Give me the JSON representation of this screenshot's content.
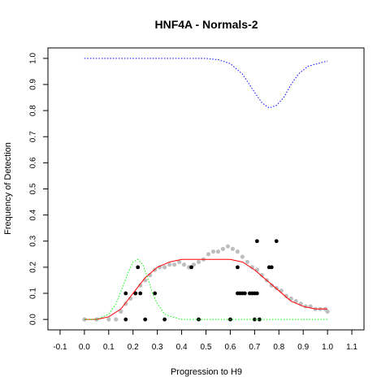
{
  "chart_data": {
    "type": "scatter",
    "title": "HNF4A - Normals-2",
    "xlabel": "Progression to H9",
    "ylabel": "Frequency of Detection",
    "xlim": [
      -0.15,
      1.15
    ],
    "ylim": [
      -0.04,
      1.04
    ],
    "x_ticks": [
      "-0.1",
      "0.0",
      "0.1",
      "0.2",
      "0.3",
      "0.4",
      "0.5",
      "0.6",
      "0.7",
      "0.8",
      "0.9",
      "1.0",
      "1.1"
    ],
    "y_ticks": [
      "0.0",
      "0.1",
      "0.2",
      "0.3",
      "0.4",
      "0.5",
      "0.6",
      "0.7",
      "0.8",
      "0.9",
      "1.0"
    ],
    "series": [
      {
        "kind": "points",
        "color": "#000000",
        "points": [
          [
            0.17,
            0.1
          ],
          [
            0.17,
            0.0
          ],
          [
            0.21,
            0.1
          ],
          [
            0.22,
            0.2
          ],
          [
            0.23,
            0.1
          ],
          [
            0.25,
            0.0
          ],
          [
            0.29,
            0.1
          ],
          [
            0.33,
            0.0
          ],
          [
            0.44,
            0.2
          ],
          [
            0.47,
            0.0
          ],
          [
            0.6,
            0.0
          ],
          [
            0.63,
            0.2
          ],
          [
            0.63,
            0.1
          ],
          [
            0.64,
            0.1
          ],
          [
            0.65,
            0.1
          ],
          [
            0.66,
            0.1
          ],
          [
            0.68,
            0.1
          ],
          [
            0.69,
            0.1
          ],
          [
            0.7,
            0.1
          ],
          [
            0.71,
            0.1
          ],
          [
            0.71,
            0.3
          ],
          [
            0.7,
            0.0
          ],
          [
            0.72,
            0.0
          ],
          [
            0.76,
            0.2
          ],
          [
            0.77,
            0.2
          ],
          [
            0.79,
            0.3
          ]
        ]
      },
      {
        "kind": "smoothed-points",
        "color": "#bebebe",
        "points": [
          [
            0.0,
            0.0
          ],
          [
            0.05,
            0.0
          ],
          [
            0.1,
            0.0
          ],
          [
            0.13,
            0.0
          ],
          [
            0.15,
            0.03
          ],
          [
            0.17,
            0.06
          ],
          [
            0.19,
            0.08
          ],
          [
            0.21,
            0.1
          ],
          [
            0.23,
            0.13
          ],
          [
            0.25,
            0.15
          ],
          [
            0.27,
            0.17
          ],
          [
            0.29,
            0.19
          ],
          [
            0.31,
            0.2
          ],
          [
            0.33,
            0.2
          ],
          [
            0.35,
            0.21
          ],
          [
            0.37,
            0.21
          ],
          [
            0.39,
            0.22
          ],
          [
            0.41,
            0.21
          ],
          [
            0.43,
            0.2
          ],
          [
            0.45,
            0.21
          ],
          [
            0.47,
            0.22
          ],
          [
            0.49,
            0.23
          ],
          [
            0.51,
            0.25
          ],
          [
            0.53,
            0.26
          ],
          [
            0.55,
            0.26
          ],
          [
            0.57,
            0.27
          ],
          [
            0.59,
            0.28
          ],
          [
            0.61,
            0.27
          ],
          [
            0.63,
            0.26
          ],
          [
            0.65,
            0.24
          ],
          [
            0.67,
            0.22
          ],
          [
            0.69,
            0.2
          ],
          [
            0.71,
            0.19
          ],
          [
            0.73,
            0.17
          ],
          [
            0.75,
            0.15
          ],
          [
            0.77,
            0.13
          ],
          [
            0.79,
            0.12
          ],
          [
            0.81,
            0.11
          ],
          [
            0.83,
            0.09
          ],
          [
            0.85,
            0.08
          ],
          [
            0.87,
            0.07
          ],
          [
            0.89,
            0.06
          ],
          [
            0.91,
            0.05
          ],
          [
            0.93,
            0.05
          ],
          [
            0.95,
            0.04
          ],
          [
            0.97,
            0.04
          ],
          [
            0.99,
            0.04
          ],
          [
            1.0,
            0.03
          ]
        ]
      },
      {
        "kind": "line",
        "style": "solid",
        "color": "#ff0000",
        "points": [
          [
            0.0,
            0.0
          ],
          [
            0.05,
            0.0
          ],
          [
            0.1,
            0.01
          ],
          [
            0.15,
            0.04
          ],
          [
            0.2,
            0.1
          ],
          [
            0.25,
            0.16
          ],
          [
            0.3,
            0.2
          ],
          [
            0.35,
            0.22
          ],
          [
            0.4,
            0.23
          ],
          [
            0.45,
            0.23
          ],
          [
            0.5,
            0.23
          ],
          [
            0.55,
            0.23
          ],
          [
            0.6,
            0.23
          ],
          [
            0.65,
            0.22
          ],
          [
            0.7,
            0.19
          ],
          [
            0.75,
            0.15
          ],
          [
            0.8,
            0.11
          ],
          [
            0.85,
            0.07
          ],
          [
            0.9,
            0.05
          ],
          [
            0.95,
            0.04
          ],
          [
            1.0,
            0.04
          ]
        ]
      },
      {
        "kind": "line",
        "style": "dotted",
        "color": "#00ff00",
        "points": [
          [
            0.0,
            0.0
          ],
          [
            0.05,
            0.0
          ],
          [
            0.1,
            0.02
          ],
          [
            0.13,
            0.06
          ],
          [
            0.16,
            0.13
          ],
          [
            0.18,
            0.18
          ],
          [
            0.2,
            0.22
          ],
          [
            0.22,
            0.23
          ],
          [
            0.24,
            0.21
          ],
          [
            0.26,
            0.16
          ],
          [
            0.28,
            0.1
          ],
          [
            0.3,
            0.06
          ],
          [
            0.33,
            0.02
          ],
          [
            0.36,
            0.01
          ],
          [
            0.4,
            0.0
          ],
          [
            0.5,
            0.0
          ],
          [
            0.6,
            0.0
          ],
          [
            0.7,
            0.0
          ],
          [
            0.8,
            0.0
          ],
          [
            0.9,
            0.0
          ],
          [
            1.0,
            0.0
          ]
        ]
      },
      {
        "kind": "line",
        "style": "dotted",
        "color": "#0000ff",
        "points": [
          [
            0.0,
            1.0
          ],
          [
            0.1,
            1.0
          ],
          [
            0.2,
            1.0
          ],
          [
            0.3,
            1.0
          ],
          [
            0.4,
            1.0
          ],
          [
            0.5,
            1.0
          ],
          [
            0.55,
            0.995
          ],
          [
            0.6,
            0.98
          ],
          [
            0.65,
            0.94
          ],
          [
            0.7,
            0.87
          ],
          [
            0.73,
            0.83
          ],
          [
            0.76,
            0.81
          ],
          [
            0.79,
            0.82
          ],
          [
            0.82,
            0.85
          ],
          [
            0.85,
            0.9
          ],
          [
            0.88,
            0.94
          ],
          [
            0.92,
            0.97
          ],
          [
            0.96,
            0.98
          ],
          [
            1.0,
            0.99
          ]
        ]
      }
    ]
  }
}
